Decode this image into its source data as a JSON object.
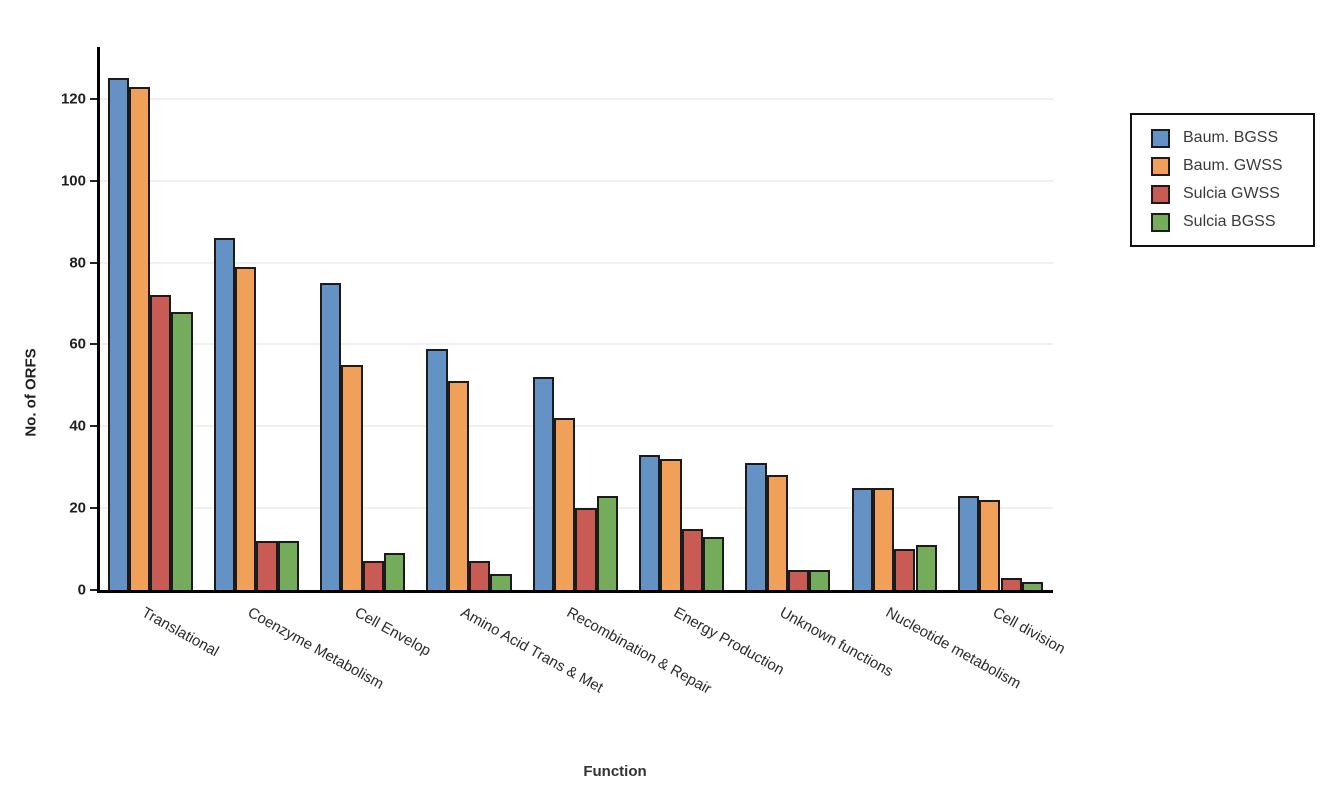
{
  "chart_data": {
    "type": "bar",
    "title": "",
    "xlabel": "Function",
    "ylabel": "No. of ORFS",
    "ylim": [
      0,
      133
    ],
    "yticks": [
      0,
      20,
      40,
      60,
      80,
      100,
      120
    ],
    "grid": "horizontal",
    "legend_position": "outside-upper-right",
    "categories": [
      "Translational",
      "Coenzyme Metabolism",
      "Cell Envelop",
      "Amino Acid Trans & Met",
      "Recombination & Repair",
      "Energy Production",
      "Unknown functions",
      "Nucleotide metabolism",
      "Cell division"
    ],
    "series": [
      {
        "name": "Baum. BGSS",
        "color": "#6592c5",
        "values": [
          125,
          86,
          75,
          59,
          52,
          33,
          31,
          25,
          23
        ]
      },
      {
        "name": "Baum. GWSS",
        "color": "#f1a05a",
        "values": [
          123,
          79,
          55,
          51,
          42,
          32,
          28,
          25,
          22
        ]
      },
      {
        "name": "Sulcia GWSS",
        "color": "#c85c55",
        "values": [
          72,
          12,
          7,
          7,
          20,
          15,
          5,
          10,
          3
        ]
      },
      {
        "name": "Sulcia BGSS",
        "color": "#74ac5c",
        "values": [
          68,
          12,
          9,
          4,
          23,
          13,
          5,
          11,
          2
        ]
      }
    ],
    "bar_border_color": "#1b1b1b",
    "gridline_color": "#f0f0f0"
  }
}
